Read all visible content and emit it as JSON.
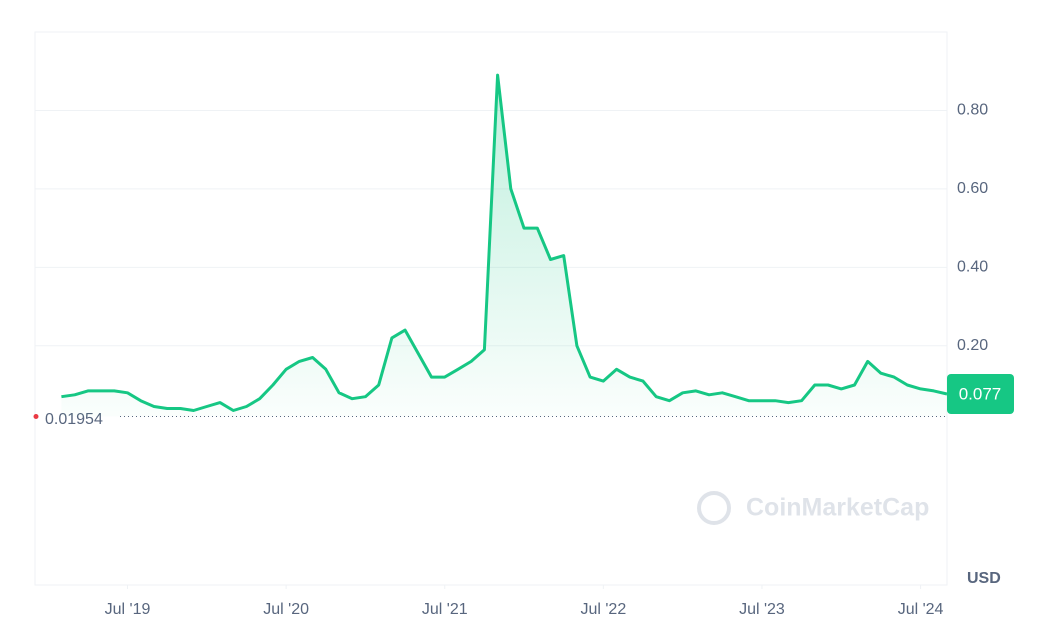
{
  "chart_data": {
    "type": "line",
    "color": "#16c784",
    "x": [
      "2019-02",
      "2019-03",
      "2019-04",
      "2019-05",
      "2019-06",
      "2019-07",
      "2019-08",
      "2019-09",
      "2019-10",
      "2019-11",
      "2019-12",
      "2020-01",
      "2020-02",
      "2020-03",
      "2020-04",
      "2020-05",
      "2020-06",
      "2020-07",
      "2020-08",
      "2020-09",
      "2020-10",
      "2020-11",
      "2020-12",
      "2021-01",
      "2021-02",
      "2021-03",
      "2021-04",
      "2021-05",
      "2021-06",
      "2021-07",
      "2021-08",
      "2021-09",
      "2021-10",
      "2021-11",
      "2021-12",
      "2022-01",
      "2022-02",
      "2022-03",
      "2022-04",
      "2022-05",
      "2022-06",
      "2022-07",
      "2022-08",
      "2022-09",
      "2022-10",
      "2022-11",
      "2022-12",
      "2023-01",
      "2023-02",
      "2023-03",
      "2023-04",
      "2023-05",
      "2023-06",
      "2023-07",
      "2023-08",
      "2023-09",
      "2023-10",
      "2023-11",
      "2023-12",
      "2024-01",
      "2024-02",
      "2024-03",
      "2024-04",
      "2024-05",
      "2024-06",
      "2024-07",
      "2024-08",
      "2024-09"
    ],
    "values": [
      0.07,
      0.075,
      0.085,
      0.085,
      0.085,
      0.08,
      0.06,
      0.045,
      0.04,
      0.04,
      0.035,
      0.045,
      0.055,
      0.035,
      0.045,
      0.065,
      0.1,
      0.14,
      0.16,
      0.17,
      0.14,
      0.08,
      0.065,
      0.07,
      0.1,
      0.22,
      0.24,
      0.18,
      0.12,
      0.12,
      0.14,
      0.16,
      0.19,
      0.89,
      0.6,
      0.5,
      0.5,
      0.42,
      0.43,
      0.2,
      0.12,
      0.11,
      0.14,
      0.12,
      0.11,
      0.07,
      0.06,
      0.08,
      0.085,
      0.075,
      0.08,
      0.07,
      0.06,
      0.06,
      0.06,
      0.055,
      0.06,
      0.1,
      0.1,
      0.09,
      0.1,
      0.16,
      0.13,
      0.12,
      0.1,
      0.09,
      0.085,
      0.077
    ],
    "xlim": [
      "2018-12",
      "2024-09"
    ],
    "xticks": [
      {
        "value": "2019-07",
        "label": "Jul '19"
      },
      {
        "value": "2020-07",
        "label": "Jul '20"
      },
      {
        "value": "2021-07",
        "label": "Jul '21"
      },
      {
        "value": "2022-07",
        "label": "Jul '22"
      },
      {
        "value": "2023-07",
        "label": "Jul '23"
      },
      {
        "value": "2024-07",
        "label": "Jul '24"
      }
    ],
    "ylim": [
      -0.41,
      1.0
    ],
    "yticks": [
      {
        "value": 0.2,
        "label": "0.20"
      },
      {
        "value": 0.4,
        "label": "0.40"
      },
      {
        "value": 0.6,
        "label": "0.60"
      },
      {
        "value": 0.8,
        "label": "0.80"
      }
    ],
    "grid": true,
    "current_price": 0.077,
    "baseline": 0.01954,
    "currency": "USD",
    "watermark": "CoinMarketCap"
  }
}
